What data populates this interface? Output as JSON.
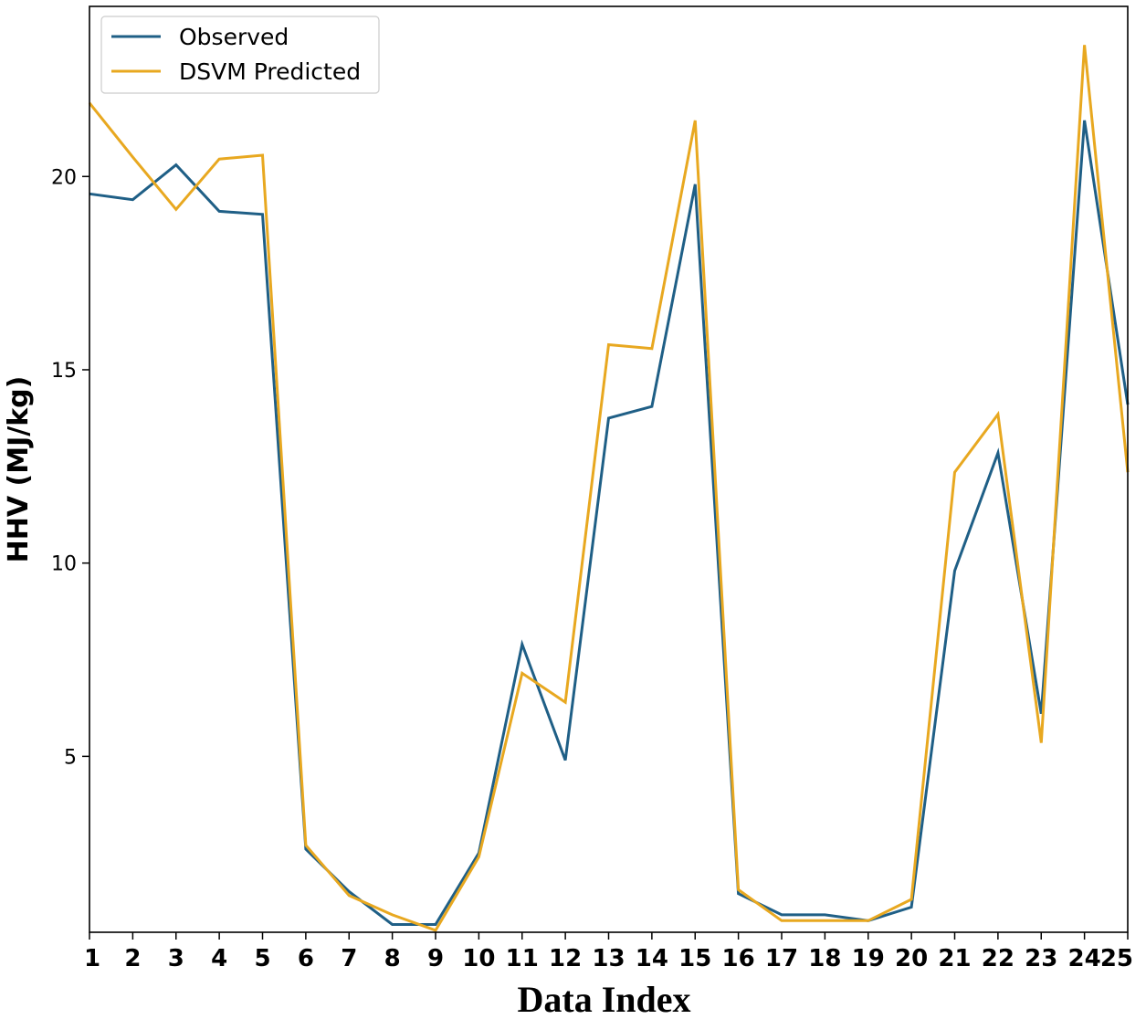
{
  "chart_data": {
    "type": "line",
    "title": "",
    "xlabel": "Data Index",
    "ylabel": "HHV (MJ/kg)",
    "x": [
      1,
      2,
      3,
      4,
      5,
      6,
      7,
      8,
      9,
      10,
      11,
      12,
      13,
      14,
      15,
      16,
      17,
      18,
      19,
      20,
      21,
      22,
      23,
      24,
      25
    ],
    "x_tick_labels": [
      "1",
      "2",
      "3",
      "4",
      "5",
      "6",
      "7",
      "8",
      "9",
      "10",
      "11",
      "12",
      "13",
      "14",
      "15",
      "16",
      "17",
      "18",
      "19",
      "20",
      "21",
      "22",
      "23",
      "24",
      "25"
    ],
    "y_ticks": [
      5,
      10,
      15,
      20
    ],
    "y_tick_labels": [
      "5",
      "10",
      "15",
      "20"
    ],
    "xlim": [
      1,
      25
    ],
    "ylim": [
      0.45,
      24.4
    ],
    "grid": false,
    "legend_position": "top-left",
    "series": [
      {
        "name": "Observed",
        "color": "#1f5f86",
        "values": [
          19.55,
          19.4,
          20.3,
          19.1,
          19.02,
          2.6,
          1.5,
          0.65,
          0.65,
          2.5,
          7.9,
          4.9,
          13.75,
          14.05,
          19.8,
          1.45,
          0.9,
          0.9,
          0.75,
          1.1,
          9.8,
          12.85,
          6.1,
          21.45,
          14.1
        ]
      },
      {
        "name": "DSVM Predicted",
        "color": "#e8a820",
        "values": [
          21.9,
          20.5,
          19.15,
          20.45,
          20.55,
          2.7,
          1.4,
          0.9,
          0.5,
          2.4,
          7.15,
          6.4,
          15.65,
          15.55,
          21.45,
          1.55,
          0.75,
          0.75,
          0.75,
          1.3,
          12.35,
          13.85,
          5.35,
          23.4,
          12.35
        ]
      }
    ]
  }
}
